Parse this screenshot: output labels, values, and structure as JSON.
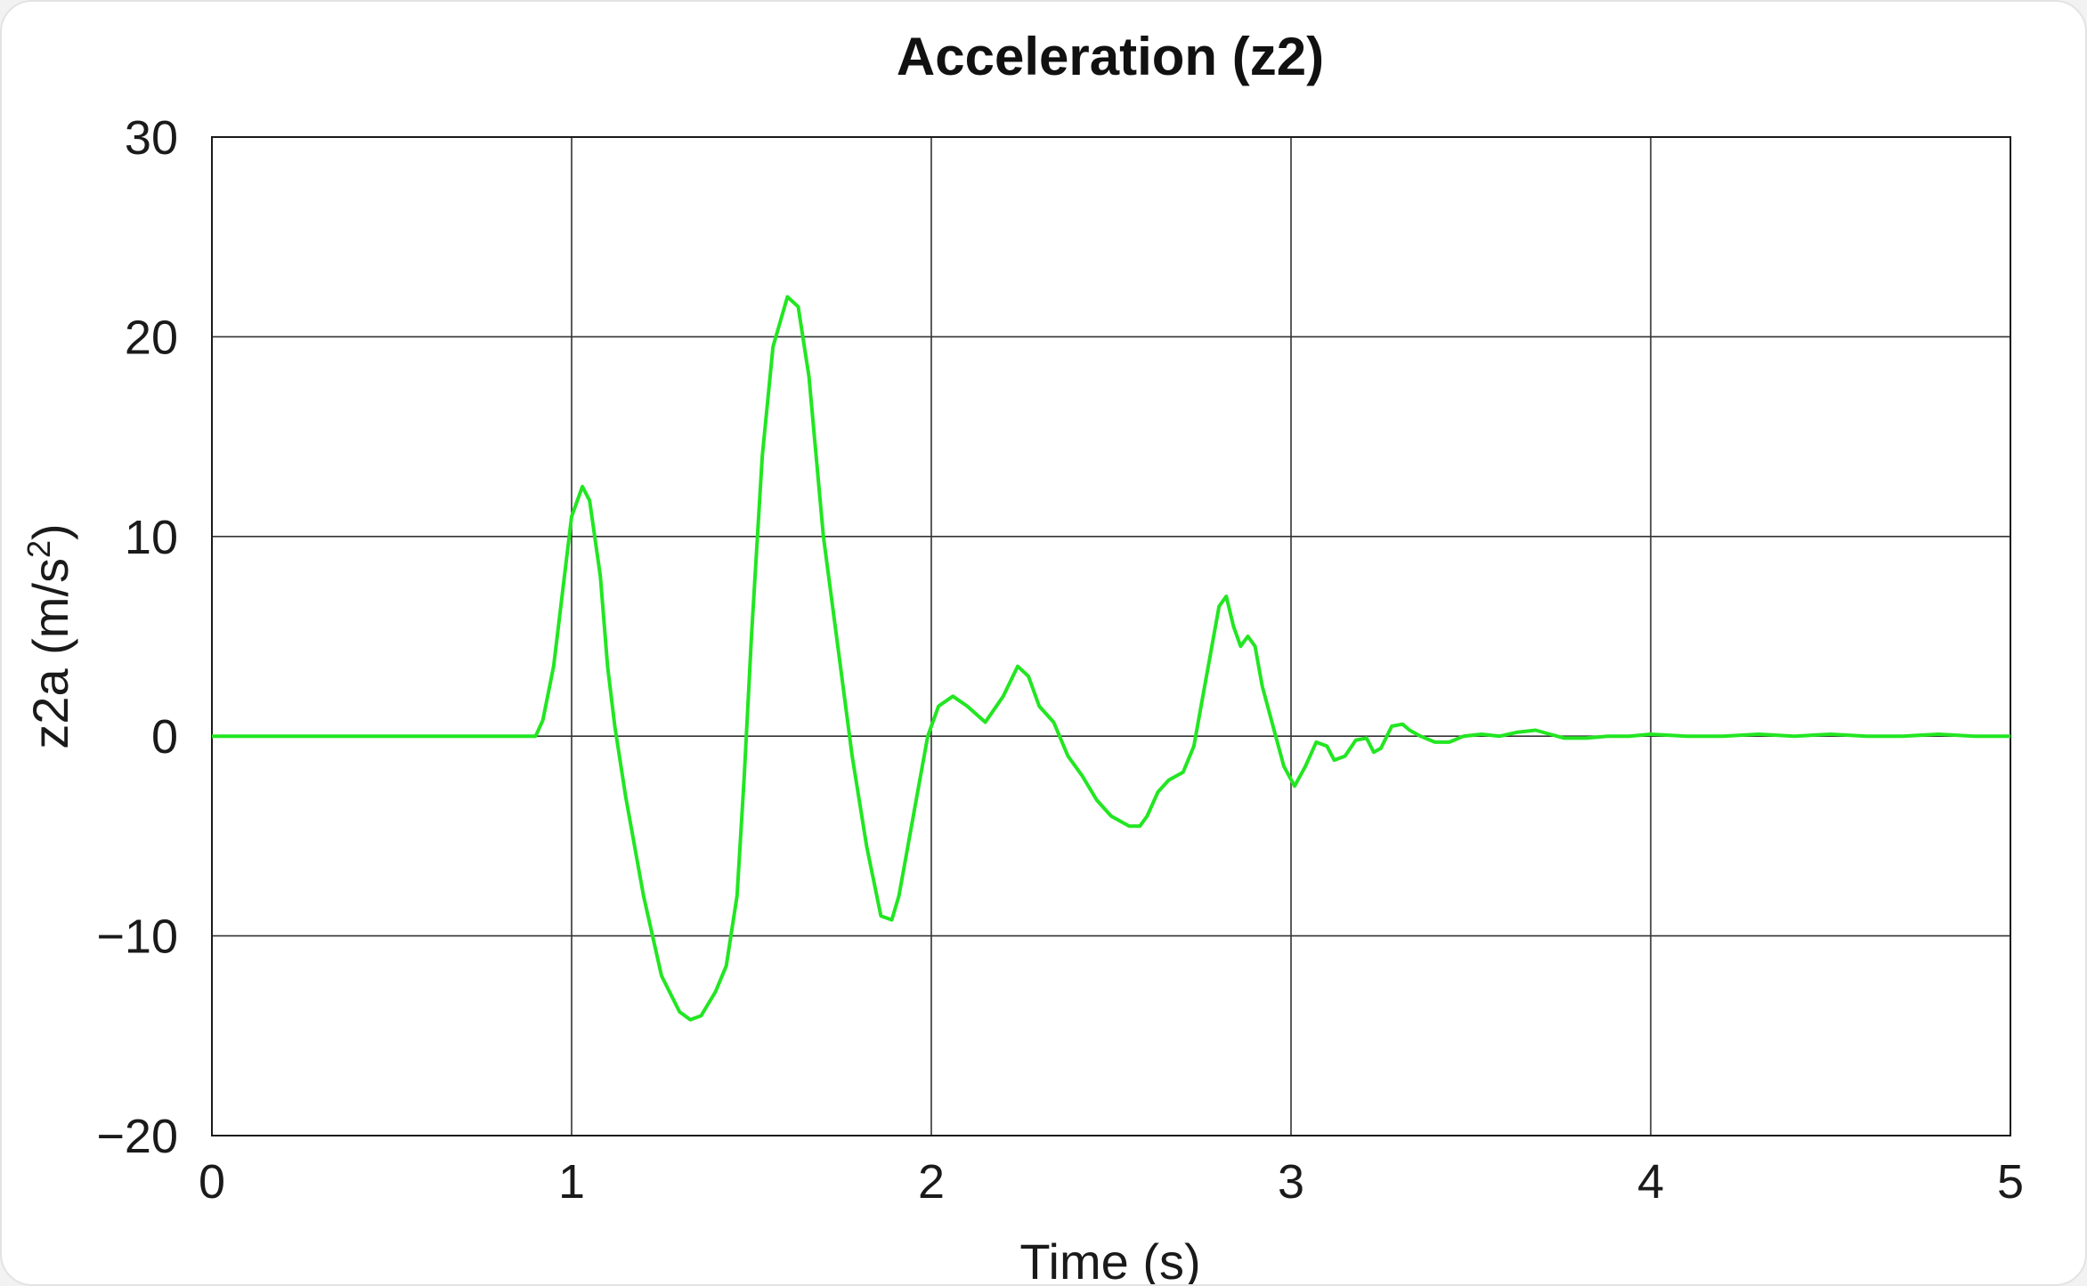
{
  "chart_data": {
    "type": "line",
    "title": "Acceleration (z2)",
    "xlabel": "Time (s)",
    "ylabel_main": "z2a (m/s",
    "ylabel_sup": "2",
    "ylabel_close": ")",
    "xlim": [
      0,
      5
    ],
    "ylim": [
      -20,
      30
    ],
    "x_ticks": [
      0,
      1,
      2,
      3,
      4,
      5
    ],
    "y_ticks": [
      -20,
      -10,
      0,
      10,
      20,
      30
    ],
    "y_tick_labels": [
      "−20",
      "−10",
      "0",
      "10",
      "20",
      "30"
    ],
    "grid": true,
    "line_color": "#22e622",
    "series": [
      {
        "x": [
          0,
          0.1,
          0.2,
          0.3,
          0.4,
          0.5,
          0.6,
          0.7,
          0.8,
          0.9,
          0.92,
          0.95,
          0.98,
          1.0,
          1.03,
          1.05,
          1.08,
          1.1,
          1.12,
          1.15,
          1.2,
          1.25,
          1.3,
          1.33,
          1.36,
          1.38,
          1.4,
          1.43,
          1.46,
          1.48,
          1.5,
          1.53,
          1.56,
          1.6,
          1.63,
          1.66,
          1.68,
          1.7,
          1.74,
          1.78,
          1.82,
          1.86,
          1.89,
          1.91,
          1.93,
          1.96,
          1.99,
          2.02,
          2.06,
          2.1,
          2.15,
          2.2,
          2.24,
          2.27,
          2.3,
          2.34,
          2.38,
          2.42,
          2.46,
          2.5,
          2.55,
          2.58,
          2.6,
          2.63,
          2.66,
          2.7,
          2.73,
          2.76,
          2.8,
          2.82,
          2.84,
          2.86,
          2.88,
          2.9,
          2.92,
          2.95,
          2.98,
          3.01,
          3.04,
          3.07,
          3.1,
          3.12,
          3.15,
          3.18,
          3.21,
          3.23,
          3.25,
          3.28,
          3.31,
          3.33,
          3.36,
          3.4,
          3.44,
          3.48,
          3.53,
          3.58,
          3.63,
          3.68,
          3.72,
          3.76,
          3.82,
          3.88,
          3.94,
          4.0,
          4.1,
          4.2,
          4.3,
          4.4,
          4.5,
          4.6,
          4.7,
          4.8,
          4.9,
          5.0
        ],
        "y": [
          0,
          0,
          0,
          0,
          0,
          0,
          0,
          0,
          0,
          0,
          0.8,
          3.5,
          8.0,
          11.0,
          12.5,
          11.8,
          8.0,
          3.5,
          0.5,
          -3.0,
          -8.0,
          -12.0,
          -13.8,
          -14.2,
          -14.0,
          -13.4,
          -12.8,
          -11.5,
          -8.0,
          -2.0,
          5.0,
          14.0,
          19.5,
          22.0,
          21.5,
          18.0,
          14.0,
          10.0,
          4.5,
          -1.0,
          -5.5,
          -9.0,
          -9.2,
          -8.0,
          -6.0,
          -3.0,
          0.0,
          1.5,
          2.0,
          1.5,
          0.7,
          2.0,
          3.5,
          3.0,
          1.5,
          0.7,
          -1.0,
          -2.0,
          -3.2,
          -4.0,
          -4.5,
          -4.5,
          -4.0,
          -2.8,
          -2.2,
          -1.8,
          -0.5,
          2.5,
          6.5,
          7.0,
          5.5,
          4.5,
          5.0,
          4.5,
          2.5,
          0.5,
          -1.5,
          -2.5,
          -1.5,
          -0.3,
          -0.5,
          -1.2,
          -1.0,
          -0.2,
          -0.1,
          -0.8,
          -0.6,
          0.5,
          0.6,
          0.3,
          0.0,
          -0.3,
          -0.3,
          0.0,
          0.1,
          0.0,
          0.2,
          0.3,
          0.1,
          -0.1,
          -0.1,
          0.0,
          0.0,
          0.1,
          0.0,
          0.0,
          0.1,
          0.0,
          0.1,
          0.0,
          0.0,
          0.1,
          0.0,
          0.0
        ]
      }
    ]
  }
}
